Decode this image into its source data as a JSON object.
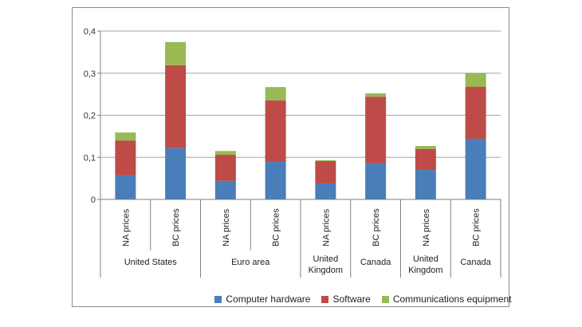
{
  "chart_data": {
    "type": "bar",
    "stacked": true,
    "ylim": [
      0,
      0.4
    ],
    "yticks": [
      "0",
      "0,1",
      "0,2",
      "0,3",
      "0,4"
    ],
    "yticks_values": [
      0,
      0.1,
      0.2,
      0.3,
      0.4
    ],
    "grid": true,
    "legend_position": "bottom",
    "categories": [
      "NA prices",
      "BC prices",
      "NA prices",
      "BC prices",
      "NA prices",
      "BC prices",
      "NA prices",
      "BC prices"
    ],
    "groups": [
      {
        "label": "United States",
        "span": 2
      },
      {
        "label": "Euro area",
        "span": 2
      },
      {
        "label": "United Kingdom",
        "lines": [
          "United",
          "Kingdom"
        ],
        "span": 1
      },
      {
        "label": "Canada",
        "span": 1
      },
      {
        "label": "United Kingdom",
        "lines": [
          "United",
          "Kingdom"
        ],
        "span": 1
      },
      {
        "label": "Canada",
        "span": 1
      }
    ],
    "series": [
      {
        "name": "Computer hardware",
        "color": "#4a7ebb",
        "values": [
          0.057,
          0.122,
          0.044,
          0.09,
          0.038,
          0.086,
          0.07,
          0.144
        ]
      },
      {
        "name": "Software",
        "color": "#be4b48",
        "values": [
          0.083,
          0.197,
          0.062,
          0.145,
          0.053,
          0.158,
          0.05,
          0.124
        ]
      },
      {
        "name": "Communications equipment",
        "color": "#98b954",
        "values": [
          0.019,
          0.055,
          0.009,
          0.032,
          0.002,
          0.008,
          0.007,
          0.032
        ]
      }
    ]
  }
}
